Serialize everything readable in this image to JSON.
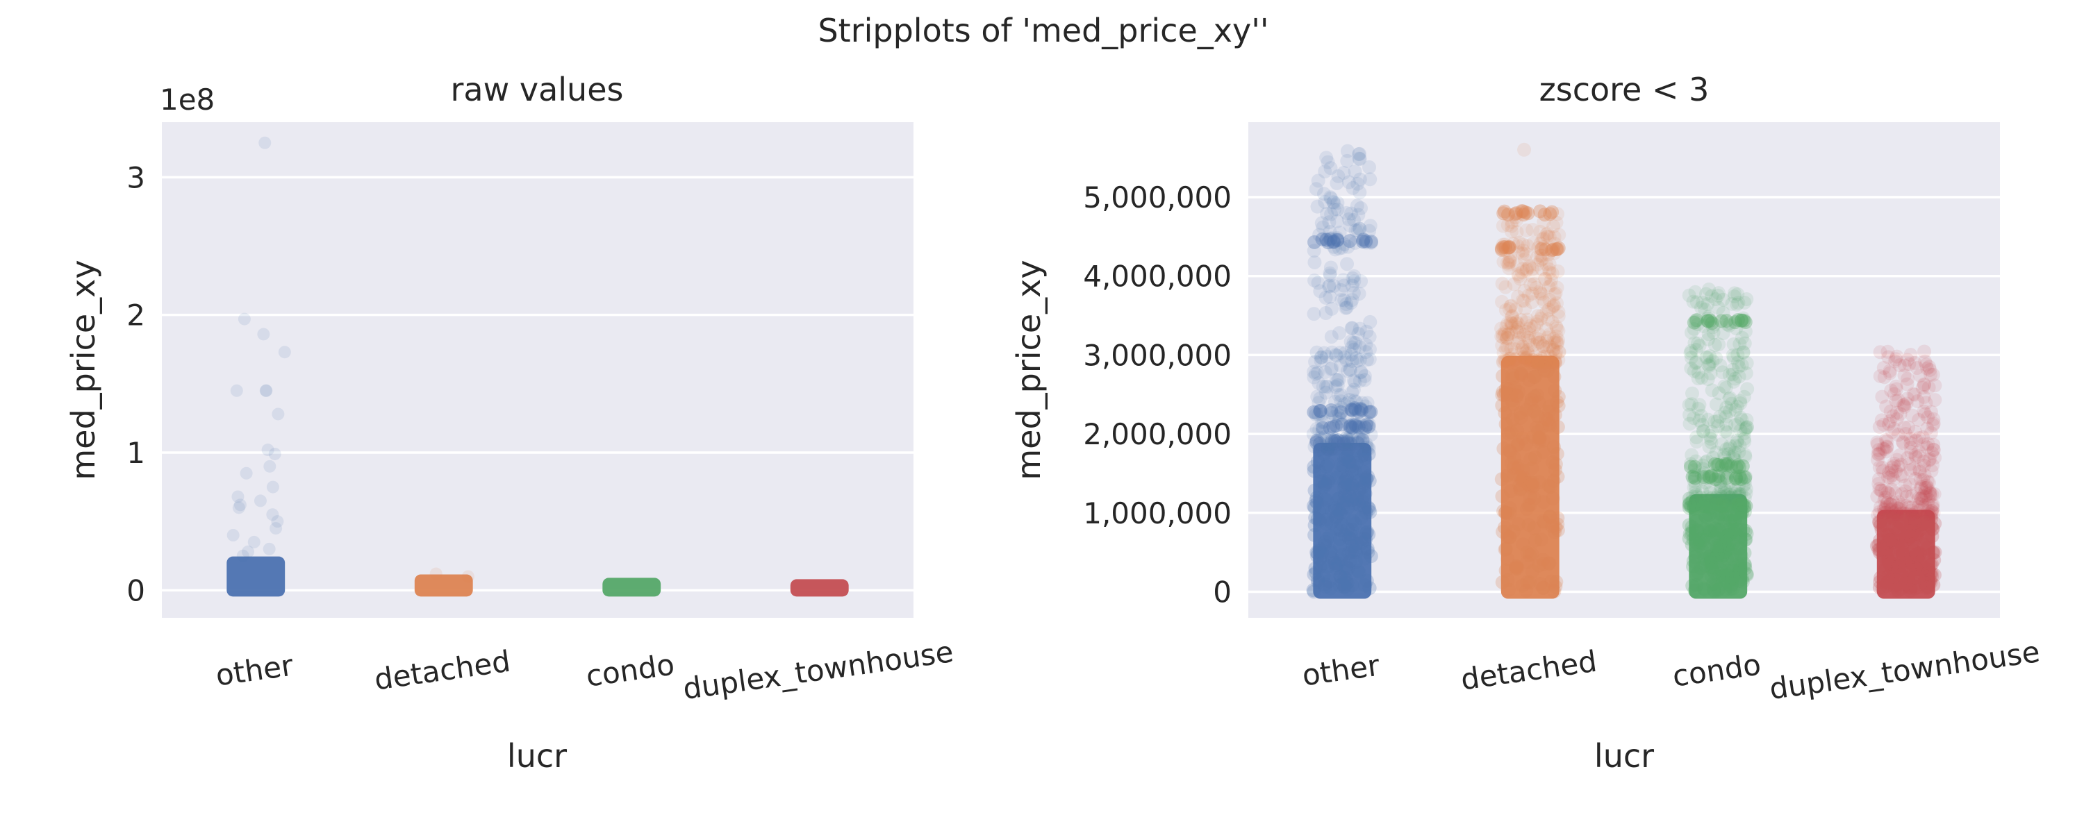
{
  "figure": {
    "title": "Stripplots of 'med_price_xy''"
  },
  "chart_data": [
    {
      "type": "scatter",
      "title": "raw values",
      "xlabel": "lucr",
      "ylabel": "med_price_xy",
      "y_offset_label": "1e8",
      "categories": [
        "other",
        "detached",
        "condo",
        "duplex_townhouse"
      ],
      "colors": [
        "#4c72b0",
        "#dd8452",
        "#55a868",
        "#c44e52"
      ],
      "ylim": [
        -20000000,
        340000000
      ],
      "y_ticks": [
        0,
        100000000,
        200000000,
        300000000
      ],
      "y_tick_labels": [
        "0",
        "1",
        "2",
        "3"
      ],
      "grid": true,
      "series": [
        {
          "category": "other",
          "dense_range": [
            0,
            20000000
          ],
          "outliers": [
            325000000,
            197000000,
            186000000,
            173000000,
            145000000,
            145000000,
            145000000,
            128000000,
            102000000,
            99000000,
            90000000,
            85000000,
            75000000,
            68000000,
            65000000,
            62000000,
            60000000,
            55000000,
            50000000,
            45000000,
            40000000,
            35000000,
            30000000,
            28000000,
            25000000
          ]
        },
        {
          "category": "detached",
          "dense_range": [
            0,
            7000000
          ],
          "outliers": [
            12000000,
            10000000
          ]
        },
        {
          "category": "condo",
          "dense_range": [
            0,
            4500000
          ],
          "outliers": []
        },
        {
          "category": "duplex_townhouse",
          "dense_range": [
            0,
            3500000
          ],
          "outliers": []
        }
      ]
    },
    {
      "type": "scatter",
      "title": "zscore < 3",
      "xlabel": "lucr",
      "ylabel": "med_price_xy",
      "categories": [
        "other",
        "detached",
        "condo",
        "duplex_townhouse"
      ],
      "colors": [
        "#4c72b0",
        "#dd8452",
        "#55a868",
        "#c44e52"
      ],
      "ylim": [
        -330000,
        5950000
      ],
      "y_ticks": [
        0,
        1000000,
        2000000,
        3000000,
        4000000,
        5000000
      ],
      "y_tick_labels": [
        "0",
        "1,000,000",
        "2,000,000",
        "3,000,000",
        "4,000,000",
        "5,000,000"
      ],
      "grid": true,
      "series": [
        {
          "category": "other",
          "dense_range": [
            0,
            1800000
          ],
          "sparse_max": 5600000,
          "bands": [
            4450000,
            2300000,
            2100000,
            1900000
          ]
        },
        {
          "category": "detached",
          "dense_range": [
            0,
            2900000
          ],
          "sparse_max": 4800000,
          "bands": [
            4800000,
            4350000
          ],
          "outliers": [
            5600000
          ]
        },
        {
          "category": "condo",
          "dense_range": [
            0,
            1150000
          ],
          "sparse_max": 3850000,
          "bands": [
            3420000,
            1600000,
            1450000,
            1100000
          ]
        },
        {
          "category": "duplex_townhouse",
          "dense_range": [
            0,
            950000
          ],
          "sparse_max": 3050000,
          "bands": []
        }
      ]
    }
  ]
}
